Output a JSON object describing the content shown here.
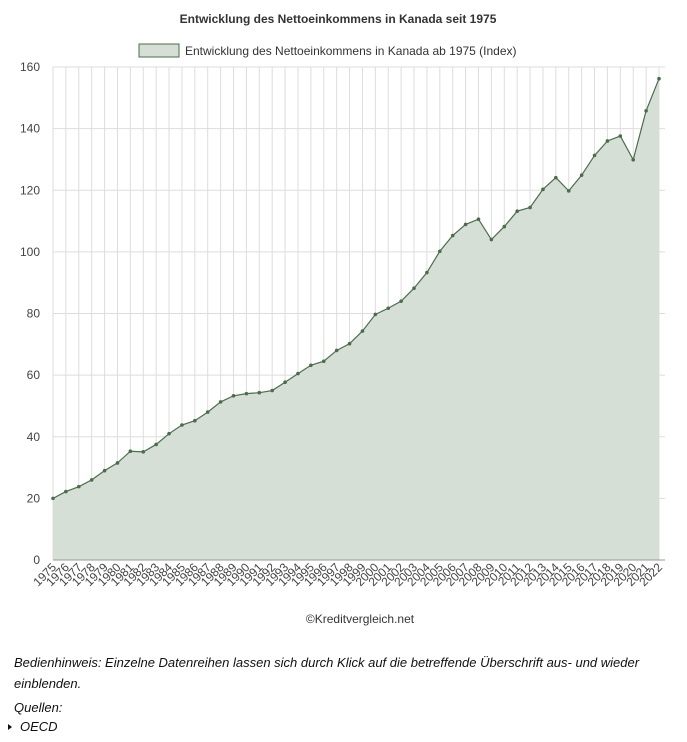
{
  "chart_data": {
    "type": "area",
    "title": "Entwicklung des Nettoeinkommens in Kanada seit 1975",
    "credit": "©Kreditvergleich.net",
    "legend": {
      "position": "top-center"
    },
    "grid": true,
    "ylim": [
      0,
      160
    ],
    "yticks": [
      0,
      20,
      40,
      60,
      80,
      100,
      120,
      140,
      160
    ],
    "x": [
      "1975",
      "1976",
      "1977",
      "1978",
      "1979",
      "1980",
      "1981",
      "1982",
      "1983",
      "1984",
      "1985",
      "1986",
      "1987",
      "1988",
      "1989",
      "1990",
      "1991",
      "1992",
      "1993",
      "1994",
      "1995",
      "1996",
      "1997",
      "1998",
      "1999",
      "2000",
      "2001",
      "2002",
      "2003",
      "2004",
      "2005",
      "2006",
      "2007",
      "2008",
      "2009",
      "2010",
      "2011",
      "2012",
      "2013",
      "2014",
      "2015",
      "2016",
      "2017",
      "2018",
      "2019",
      "2020",
      "2021",
      "2022"
    ],
    "series": [
      {
        "name": "Entwicklung des Nettoeinkommens in Kanada ab 1975 (Index)",
        "values": [
          20,
          22.2,
          23.8,
          26,
          29,
          31.5,
          35.3,
          35.1,
          37.5,
          41,
          43.8,
          45.2,
          48,
          51.3,
          53.3,
          54,
          54.3,
          55,
          57.7,
          60.5,
          63.2,
          64.5,
          68,
          70.2,
          74.3,
          79.7,
          81.7,
          84,
          88.2,
          93.3,
          100.2,
          105.3,
          108.9,
          110.6,
          104,
          108.2,
          113.2,
          114.4,
          120.3,
          124.1,
          119.8,
          124.9,
          131.3,
          136,
          137.6,
          129.9,
          145.8,
          156.2
        ]
      }
    ],
    "colors": {
      "line": "#4a6d4a",
      "fill": "#d5dfd5",
      "grid": "#dddddd",
      "axis": "#999999"
    }
  },
  "note": "Bedienhinweis: Einzelne Datenreihen lassen sich durch Klick auf die betreffende Überschrift aus- und wieder einblenden.",
  "sources": {
    "label": "Quellen:",
    "items": [
      "OECD"
    ]
  }
}
